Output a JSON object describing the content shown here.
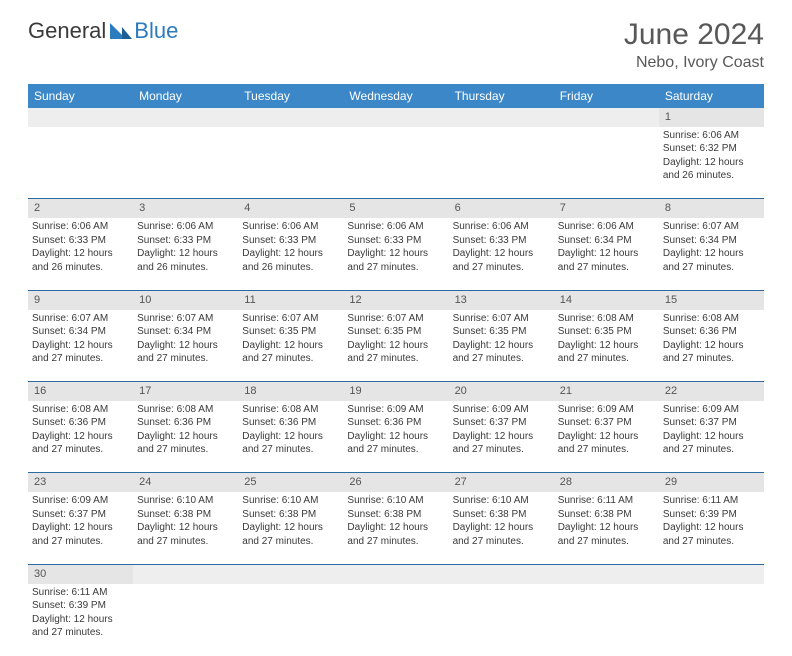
{
  "logo": {
    "part1": "General",
    "part2": "Blue"
  },
  "title": "June 2024",
  "location": "Nebo, Ivory Coast",
  "colors": {
    "header_bg": "#3c87c7",
    "header_text": "#ffffff",
    "daynum_bg": "#e5e5e5",
    "rule": "#2b6aa3",
    "logo_blue": "#2b7bbf"
  },
  "dayNames": [
    "Sunday",
    "Monday",
    "Tuesday",
    "Wednesday",
    "Thursday",
    "Friday",
    "Saturday"
  ],
  "weeks": [
    [
      null,
      null,
      null,
      null,
      null,
      null,
      {
        "n": "1",
        "sr": "Sunrise: 6:06 AM",
        "ss": "Sunset: 6:32 PM",
        "d1": "Daylight: 12 hours",
        "d2": "and 26 minutes."
      }
    ],
    [
      {
        "n": "2",
        "sr": "Sunrise: 6:06 AM",
        "ss": "Sunset: 6:33 PM",
        "d1": "Daylight: 12 hours",
        "d2": "and 26 minutes."
      },
      {
        "n": "3",
        "sr": "Sunrise: 6:06 AM",
        "ss": "Sunset: 6:33 PM",
        "d1": "Daylight: 12 hours",
        "d2": "and 26 minutes."
      },
      {
        "n": "4",
        "sr": "Sunrise: 6:06 AM",
        "ss": "Sunset: 6:33 PM",
        "d1": "Daylight: 12 hours",
        "d2": "and 26 minutes."
      },
      {
        "n": "5",
        "sr": "Sunrise: 6:06 AM",
        "ss": "Sunset: 6:33 PM",
        "d1": "Daylight: 12 hours",
        "d2": "and 27 minutes."
      },
      {
        "n": "6",
        "sr": "Sunrise: 6:06 AM",
        "ss": "Sunset: 6:33 PM",
        "d1": "Daylight: 12 hours",
        "d2": "and 27 minutes."
      },
      {
        "n": "7",
        "sr": "Sunrise: 6:06 AM",
        "ss": "Sunset: 6:34 PM",
        "d1": "Daylight: 12 hours",
        "d2": "and 27 minutes."
      },
      {
        "n": "8",
        "sr": "Sunrise: 6:07 AM",
        "ss": "Sunset: 6:34 PM",
        "d1": "Daylight: 12 hours",
        "d2": "and 27 minutes."
      }
    ],
    [
      {
        "n": "9",
        "sr": "Sunrise: 6:07 AM",
        "ss": "Sunset: 6:34 PM",
        "d1": "Daylight: 12 hours",
        "d2": "and 27 minutes."
      },
      {
        "n": "10",
        "sr": "Sunrise: 6:07 AM",
        "ss": "Sunset: 6:34 PM",
        "d1": "Daylight: 12 hours",
        "d2": "and 27 minutes."
      },
      {
        "n": "11",
        "sr": "Sunrise: 6:07 AM",
        "ss": "Sunset: 6:35 PM",
        "d1": "Daylight: 12 hours",
        "d2": "and 27 minutes."
      },
      {
        "n": "12",
        "sr": "Sunrise: 6:07 AM",
        "ss": "Sunset: 6:35 PM",
        "d1": "Daylight: 12 hours",
        "d2": "and 27 minutes."
      },
      {
        "n": "13",
        "sr": "Sunrise: 6:07 AM",
        "ss": "Sunset: 6:35 PM",
        "d1": "Daylight: 12 hours",
        "d2": "and 27 minutes."
      },
      {
        "n": "14",
        "sr": "Sunrise: 6:08 AM",
        "ss": "Sunset: 6:35 PM",
        "d1": "Daylight: 12 hours",
        "d2": "and 27 minutes."
      },
      {
        "n": "15",
        "sr": "Sunrise: 6:08 AM",
        "ss": "Sunset: 6:36 PM",
        "d1": "Daylight: 12 hours",
        "d2": "and 27 minutes."
      }
    ],
    [
      {
        "n": "16",
        "sr": "Sunrise: 6:08 AM",
        "ss": "Sunset: 6:36 PM",
        "d1": "Daylight: 12 hours",
        "d2": "and 27 minutes."
      },
      {
        "n": "17",
        "sr": "Sunrise: 6:08 AM",
        "ss": "Sunset: 6:36 PM",
        "d1": "Daylight: 12 hours",
        "d2": "and 27 minutes."
      },
      {
        "n": "18",
        "sr": "Sunrise: 6:08 AM",
        "ss": "Sunset: 6:36 PM",
        "d1": "Daylight: 12 hours",
        "d2": "and 27 minutes."
      },
      {
        "n": "19",
        "sr": "Sunrise: 6:09 AM",
        "ss": "Sunset: 6:36 PM",
        "d1": "Daylight: 12 hours",
        "d2": "and 27 minutes."
      },
      {
        "n": "20",
        "sr": "Sunrise: 6:09 AM",
        "ss": "Sunset: 6:37 PM",
        "d1": "Daylight: 12 hours",
        "d2": "and 27 minutes."
      },
      {
        "n": "21",
        "sr": "Sunrise: 6:09 AM",
        "ss": "Sunset: 6:37 PM",
        "d1": "Daylight: 12 hours",
        "d2": "and 27 minutes."
      },
      {
        "n": "22",
        "sr": "Sunrise: 6:09 AM",
        "ss": "Sunset: 6:37 PM",
        "d1": "Daylight: 12 hours",
        "d2": "and 27 minutes."
      }
    ],
    [
      {
        "n": "23",
        "sr": "Sunrise: 6:09 AM",
        "ss": "Sunset: 6:37 PM",
        "d1": "Daylight: 12 hours",
        "d2": "and 27 minutes."
      },
      {
        "n": "24",
        "sr": "Sunrise: 6:10 AM",
        "ss": "Sunset: 6:38 PM",
        "d1": "Daylight: 12 hours",
        "d2": "and 27 minutes."
      },
      {
        "n": "25",
        "sr": "Sunrise: 6:10 AM",
        "ss": "Sunset: 6:38 PM",
        "d1": "Daylight: 12 hours",
        "d2": "and 27 minutes."
      },
      {
        "n": "26",
        "sr": "Sunrise: 6:10 AM",
        "ss": "Sunset: 6:38 PM",
        "d1": "Daylight: 12 hours",
        "d2": "and 27 minutes."
      },
      {
        "n": "27",
        "sr": "Sunrise: 6:10 AM",
        "ss": "Sunset: 6:38 PM",
        "d1": "Daylight: 12 hours",
        "d2": "and 27 minutes."
      },
      {
        "n": "28",
        "sr": "Sunrise: 6:11 AM",
        "ss": "Sunset: 6:38 PM",
        "d1": "Daylight: 12 hours",
        "d2": "and 27 minutes."
      },
      {
        "n": "29",
        "sr": "Sunrise: 6:11 AM",
        "ss": "Sunset: 6:39 PM",
        "d1": "Daylight: 12 hours",
        "d2": "and 27 minutes."
      }
    ],
    [
      {
        "n": "30",
        "sr": "Sunrise: 6:11 AM",
        "ss": "Sunset: 6:39 PM",
        "d1": "Daylight: 12 hours",
        "d2": "and 27 minutes."
      },
      null,
      null,
      null,
      null,
      null,
      null
    ]
  ]
}
